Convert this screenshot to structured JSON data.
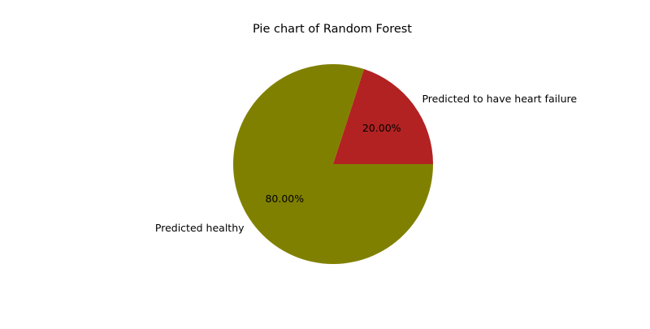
{
  "chart_data": {
    "type": "pie",
    "title": "Pie chart of Random Forest",
    "start_angle_deg": 0,
    "direction": "counterclockwise",
    "slices": [
      {
        "label": "Predicted to have heart failure",
        "value": 20,
        "percent_label": "20.00%",
        "color": "#b22222"
      },
      {
        "label": "Predicted healthy",
        "value": 80,
        "percent_label": "80.00%",
        "color": "#808000"
      }
    ]
  }
}
